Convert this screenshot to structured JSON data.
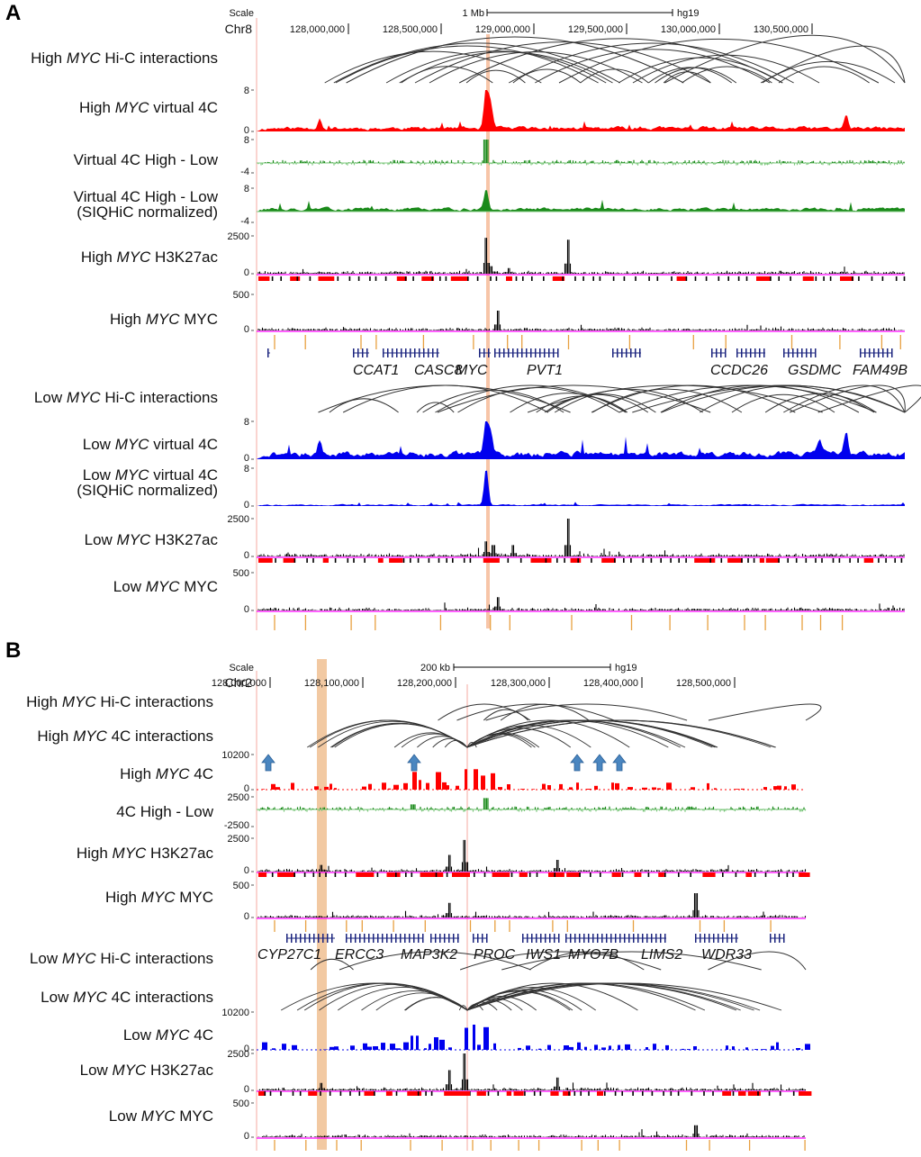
{
  "figure": {
    "panels": [
      {
        "label": "A",
        "scale": {
          "label": "Scale",
          "bar": "1 Mb",
          "assembly": "hg19"
        },
        "chrom": "Chr8",
        "ticks": [
          "128,000,000",
          "128,500,000",
          "129,000,000",
          "129,500,000",
          "130,000,000",
          "130,500,000"
        ],
        "tracks": [
          {
            "key": "hic_high",
            "pre": "High ",
            "gene": "MYC",
            "post": " Hi-C interactions"
          },
          {
            "key": "v4c_high",
            "pre": "High ",
            "gene": "MYC",
            "post": " virtual 4C",
            "ymax": "8",
            "ymin": "0",
            "color": "#ff0000"
          },
          {
            "key": "diff1",
            "pre": "Virtual 4C High - Low",
            "gene": "",
            "post": "",
            "ymax": "8",
            "ymin": "-4",
            "color": "#1a8a1a",
            "negcolor": "#7dc87d"
          },
          {
            "key": "diff2",
            "pre": "Virtual 4C High - Low",
            "gene": "",
            "post": "",
            "line2": "(SIQHiC normalized)",
            "ymax": "8",
            "ymin": "-4",
            "color": "#1a8a1a"
          },
          {
            "key": "h3_high",
            "pre": "High ",
            "gene": "MYC",
            "post": " H3K27ac",
            "ymax": "2500",
            "ymin": "0",
            "color": "#000000"
          },
          {
            "key": "myc_high",
            "pre": "High ",
            "gene": "MYC",
            "post": " MYC",
            "ymax": "500",
            "ymin": "0",
            "color": "#000000"
          },
          {
            "key": "hic_low",
            "pre": "Low ",
            "gene": "MYC",
            "post": " Hi-C interactions"
          },
          {
            "key": "v4c_low",
            "pre": "Low ",
            "gene": "MYC",
            "post": " virtual 4C",
            "ymax": "8",
            "ymin": "0",
            "color": "#0000ee"
          },
          {
            "key": "v4c_low_n",
            "pre": "Low ",
            "gene": "MYC",
            "post": " virtual 4C",
            "line2": "(SIQHiC normalized)",
            "ymax": "8",
            "ymin": "0",
            "color": "#0000ee"
          },
          {
            "key": "h3_low",
            "pre": "Low ",
            "gene": "MYC",
            "post": " H3K27ac",
            "ymax": "2500",
            "ymin": "0",
            "color": "#000000"
          },
          {
            "key": "myc_low",
            "pre": "Low ",
            "gene": "MYC",
            "post": " MYC",
            "ymax": "500",
            "ymin": "0",
            "color": "#000000"
          }
        ],
        "genes": [
          "CCAT1",
          "CASC8",
          "MYC",
          "PVT1",
          "CCDC26",
          "GSDMC",
          "FAM49B"
        ]
      },
      {
        "label": "B",
        "scale": {
          "label": "Scale",
          "bar": "200 kb",
          "assembly": "hg19"
        },
        "chrom": "Chr2",
        "ticks": [
          "128,000,000",
          "128,100,000",
          "128,200,000",
          "128,300,000",
          "128,400,000",
          "128,500,000"
        ],
        "tracks": [
          {
            "key": "b_hic_high",
            "pre": "High ",
            "gene": "MYC",
            "post": " Hi-C interactions"
          },
          {
            "key": "b_4ci_high",
            "pre": "High ",
            "gene": "MYC",
            "post": " 4C interactions"
          },
          {
            "key": "b_4c_high",
            "pre": "High ",
            "gene": "MYC",
            "post": " 4C",
            "ymax": "10200",
            "ymin": "0",
            "color": "#ff0000"
          },
          {
            "key": "b_diff",
            "pre": "4C High - Low",
            "gene": "",
            "post": "",
            "ymax": "2500",
            "ymin": "-2500",
            "color": "#1a8a1a"
          },
          {
            "key": "b_h3_high",
            "pre": "High ",
            "gene": "MYC",
            "post": " H3K27ac",
            "ymax": "2500",
            "ymin": "0",
            "color": "#000000"
          },
          {
            "key": "b_myc_high",
            "pre": "High ",
            "gene": "MYC",
            "post": " MYC",
            "ymax": "500",
            "ymin": "0",
            "color": "#000000"
          },
          {
            "key": "b_hic_low",
            "pre": "Low ",
            "gene": "MYC",
            "post": " Hi-C interactions"
          },
          {
            "key": "b_4ci_low",
            "pre": "Low ",
            "gene": "MYC",
            "post": " 4C interactions"
          },
          {
            "key": "b_4c_low",
            "pre": "Low ",
            "gene": "MYC",
            "post": " 4C",
            "ymax": "10200",
            "ymin": "0",
            "color": "#0000ee"
          },
          {
            "key": "b_h3_low",
            "pre": "Low ",
            "gene": "MYC",
            "post": " H3K27ac",
            "ymax": "2500",
            "ymin": "0",
            "color": "#000000"
          },
          {
            "key": "b_myc_low",
            "pre": "Low ",
            "gene": "MYC",
            "post": " MYC",
            "ymax": "500",
            "ymin": "0",
            "color": "#000000"
          }
        ],
        "genes": [
          "CYP27C1",
          "ERCC3",
          "MAP3K2",
          "PROC",
          "IWS1",
          "MYO7B",
          "LIMS2",
          "WDR33"
        ]
      }
    ]
  },
  "colors": {
    "high": "#ff0000",
    "low": "#0000ee",
    "diff_pos": "#1a8a1a",
    "diff_neg": "#7dc87d",
    "enhancer": "#ff0000",
    "peak_tick": "#e8a040",
    "gene_model": "#1a237e",
    "highlight": "#f2c9a2",
    "arrow": "#4a86c0",
    "baseline": "#ff00ff"
  },
  "icons": [
    "up-arrow-icon"
  ]
}
